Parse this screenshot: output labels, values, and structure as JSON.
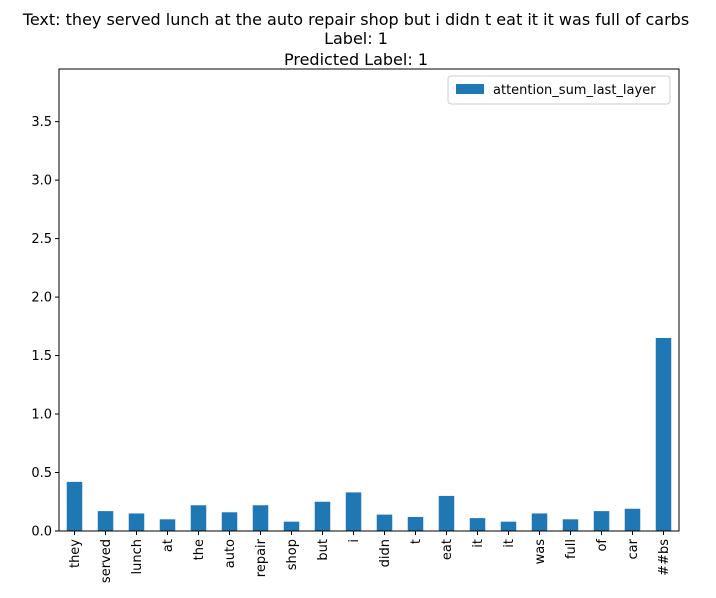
{
  "chart_data": {
    "type": "bar",
    "title_lines": [
      "Text: they served lunch at the auto repair shop but i didn t eat it it was full of carbs",
      "Label: 1",
      "Predicted Label: 1"
    ],
    "xlabel": "",
    "ylabel": "",
    "categories": [
      "they",
      "served",
      "lunch",
      "at",
      "the",
      "auto",
      "repair",
      "shop",
      "but",
      "i",
      "didn",
      "t",
      "eat",
      "it",
      "it",
      "was",
      "full",
      "of",
      "car",
      "##bs"
    ],
    "series": [
      {
        "name": "attention_sum_last_layer",
        "color": "#1f77b4",
        "values": [
          0.42,
          0.17,
          0.15,
          0.1,
          0.22,
          0.16,
          0.22,
          0.08,
          0.25,
          0.33,
          0.14,
          0.12,
          0.3,
          0.11,
          0.08,
          0.15,
          0.1,
          0.17,
          0.19,
          1.65
        ]
      }
    ],
    "ylim": [
      0,
      3.95
    ],
    "yticks": [
      "0.0",
      "0.5",
      "1.0",
      "1.5",
      "2.0",
      "2.5",
      "3.0",
      "3.5"
    ],
    "grid": false,
    "legend_position": "top-right"
  }
}
